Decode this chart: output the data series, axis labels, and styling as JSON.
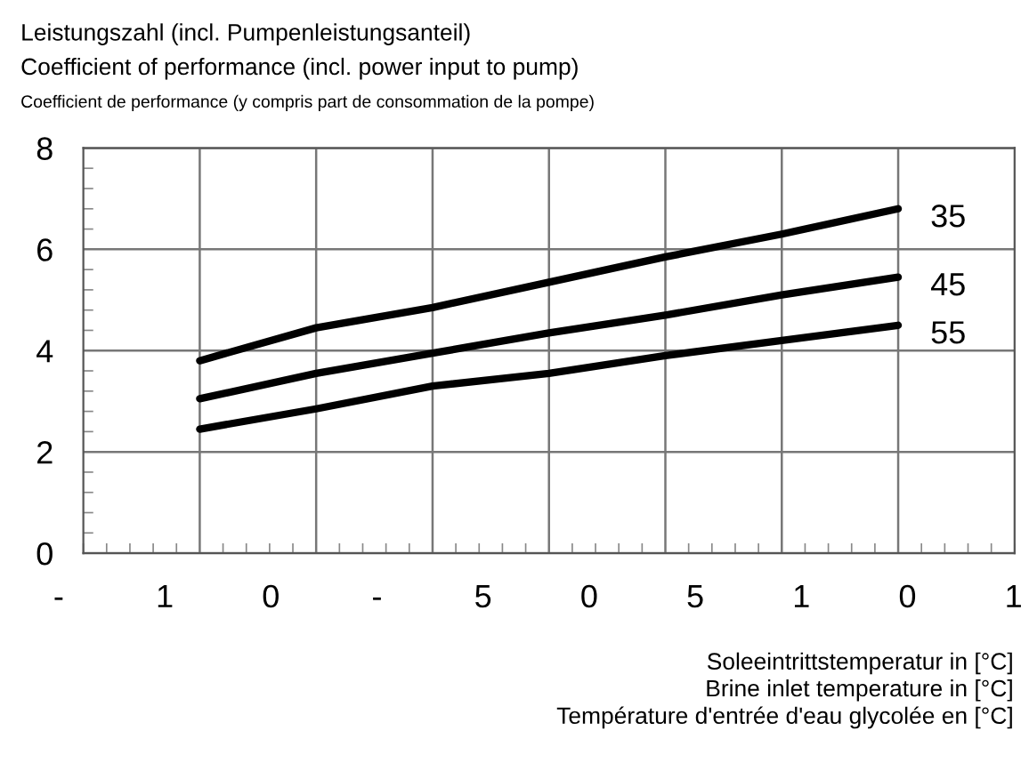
{
  "chart_data": {
    "type": "line",
    "title": "Leistungszahl (incl. Pumpenleistungsanteil)",
    "subtitle": "Coefficient of performance (incl. power input to pump)",
    "xlabel": "Soleeintrittstemperatur in [°C]\nBrine inlet temperature in [°C]\nTempérature d'entrée d'eau glycolée en [°C]",
    "annotations": [
      "Coefficient de performance (y compris part de consommation de la pompe)",
      "- 1 0 - 5 0 5 1 0 1"
    ],
    "categories": [
      null,
      null,
      null,
      null,
      null,
      null,
      null
    ],
    "series": [
      {
        "name": "35",
        "color": "#000000",
        "values": [
          3.8,
          4.45,
          4.85,
          5.35,
          5.85,
          6.3,
          6.8
        ]
      },
      {
        "name": "45",
        "color": "#000000",
        "values": [
          3.05,
          3.55,
          3.95,
          4.35,
          4.7,
          5.1,
          5.45
        ]
      },
      {
        "name": "55",
        "color": "#000000",
        "values": [
          2.45,
          2.85,
          3.3,
          3.55,
          3.9,
          4.2,
          4.5
        ]
      }
    ],
    "ylim": [
      0,
      8
    ],
    "yticks": [
      0,
      2,
      4,
      6,
      8
    ],
    "grid": true,
    "marker": "none",
    "line_style": "solid",
    "legend": "right"
  }
}
